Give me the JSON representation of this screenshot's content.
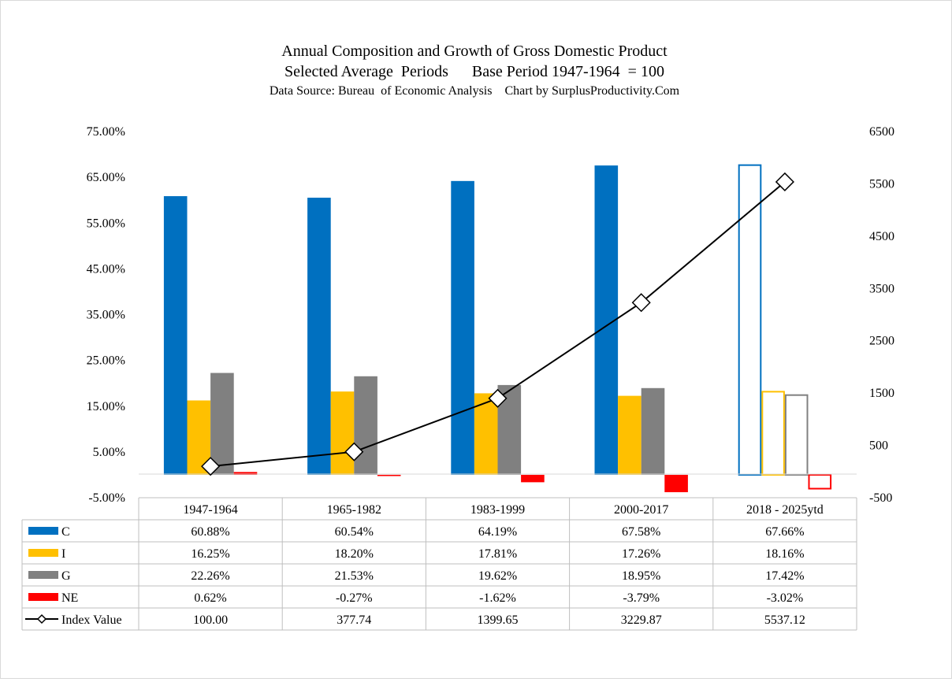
{
  "chart_data": {
    "type": "bar",
    "title": "Annual Composition and Growth of Gross Domestic Product",
    "subtitle": "Selected Average  Periods      Base Period 1947-1964  = 100",
    "source": "Data Source: Bureau  of Economic Analysis    Chart by SurplusProductivity.Com",
    "categories": [
      "1947-1964",
      "1965-1982",
      "1983-1999",
      "2000-2017",
      "2018 - 2025ytd"
    ],
    "last_category_outlined": true,
    "y_left": {
      "min": -5,
      "max": 75,
      "step": 10,
      "tick_labels": [
        "75.00%",
        "65.00%",
        "55.00%",
        "45.00%",
        "35.00%",
        "25.00%",
        "15.00%",
        "5.00%",
        "-5.00%"
      ]
    },
    "y_right": {
      "min": -500,
      "max": 6500,
      "step": 1000,
      "tick_labels": [
        "6500",
        "5500",
        "4500",
        "3500",
        "2500",
        "1500",
        "500",
        "-500"
      ]
    },
    "series": [
      {
        "name": "C",
        "kind": "bar",
        "axis": "left",
        "color": "#0070C0",
        "values": [
          60.88,
          60.54,
          64.19,
          67.58,
          67.66
        ],
        "labels": [
          "60.88%",
          "60.54%",
          "64.19%",
          "67.58%",
          "67.66%"
        ]
      },
      {
        "name": "I",
        "kind": "bar",
        "axis": "left",
        "color": "#FFC000",
        "values": [
          16.25,
          18.2,
          17.81,
          17.26,
          18.16
        ],
        "labels": [
          "16.25%",
          "18.20%",
          "17.81%",
          "17.26%",
          "18.16%"
        ]
      },
      {
        "name": "G",
        "kind": "bar",
        "axis": "left",
        "color": "#808080",
        "values": [
          22.26,
          21.53,
          19.62,
          18.95,
          17.42
        ],
        "labels": [
          "22.26%",
          "21.53%",
          "19.62%",
          "18.95%",
          "17.42%"
        ]
      },
      {
        "name": "NE",
        "kind": "bar",
        "axis": "left",
        "color": "#FF0000",
        "values": [
          0.62,
          -0.27,
          -1.62,
          -3.79,
          -3.02
        ],
        "labels": [
          "0.62%",
          "-0.27%",
          "-1.62%",
          "-3.79%",
          "-3.02%"
        ]
      },
      {
        "name": "Index Value",
        "kind": "line",
        "axis": "right",
        "color": "#000000",
        "values": [
          100.0,
          377.74,
          1399.65,
          3229.87,
          5537.12
        ],
        "labels": [
          "100.00",
          "377.74",
          "1399.65",
          "3229.87",
          "5537.12"
        ]
      }
    ]
  }
}
